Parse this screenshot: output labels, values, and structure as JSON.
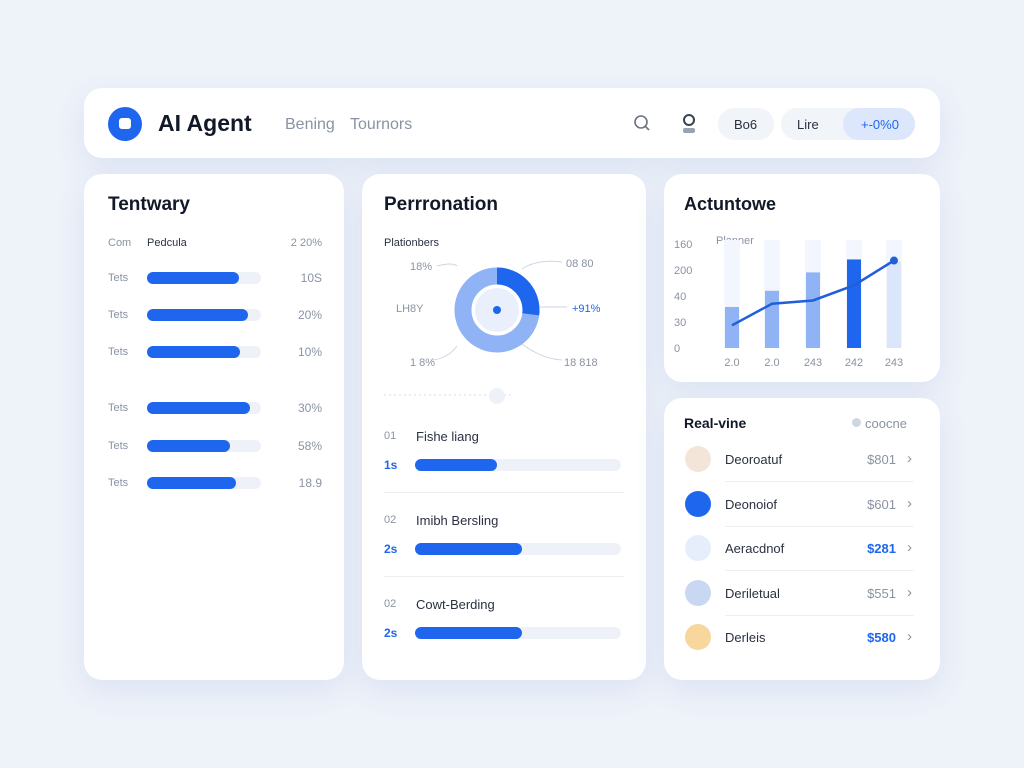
{
  "header": {
    "title": "AI Agent",
    "nav": [
      "Bening",
      "Tournors"
    ],
    "buttons": [
      "Bo6",
      "Lire",
      "+-0%0"
    ]
  },
  "left": {
    "title": "Tentwary",
    "columns": [
      "Com",
      "Pedcula",
      "2 20%"
    ],
    "rows": [
      {
        "label": "Tets",
        "value": "10S",
        "progress": 81
      },
      {
        "label": "Tets",
        "value": "20%",
        "progress": 89
      },
      {
        "label": "Tets",
        "value": "10%",
        "progress": 82
      },
      {
        "label": "Tets",
        "value": "30%",
        "progress": 90
      },
      {
        "label": "Tets",
        "value": "58%",
        "progress": 73
      },
      {
        "label": "Tets",
        "value": "18.9",
        "progress": 78
      }
    ]
  },
  "middle": {
    "title": "Perrronation",
    "subtitle": "Plationbers",
    "donut_share": 27,
    "donut_labels": [
      "18%",
      "08 80",
      "+91%",
      "18 818",
      "1 8%",
      "LH8Y"
    ],
    "items": [
      {
        "num": "01",
        "title": "Fishe liang",
        "sub": "1s",
        "progress": 40
      },
      {
        "num": "02",
        "title": "Imibh Bersling",
        "sub": "2s",
        "progress": 52
      },
      {
        "num": "02",
        "title": "Cowt-Berding",
        "sub": "2s",
        "progress": 52
      }
    ]
  },
  "activity": {
    "title": "Actuntowe",
    "legend": "Planner",
    "ylabels": [
      "160",
      "200",
      "40",
      "30",
      "0"
    ],
    "xlabels": [
      "2.0",
      "2.0",
      "243",
      "242",
      "243"
    ],
    "bars": [
      38,
      53,
      70,
      82,
      80
    ],
    "line": [
      21,
      41,
      44,
      58,
      81
    ]
  },
  "realtime": {
    "title": "Real-vine",
    "status": "coocne",
    "rows": [
      {
        "name": "Deoroatuf",
        "amount": "$801"
      },
      {
        "name": "Deonoiof",
        "amount": "$601"
      },
      {
        "name": "Aeracdnof",
        "amount": "$281"
      },
      {
        "name": "Deriletual",
        "amount": "$551"
      },
      {
        "name": "Derleis",
        "amount": "$580"
      }
    ]
  }
}
